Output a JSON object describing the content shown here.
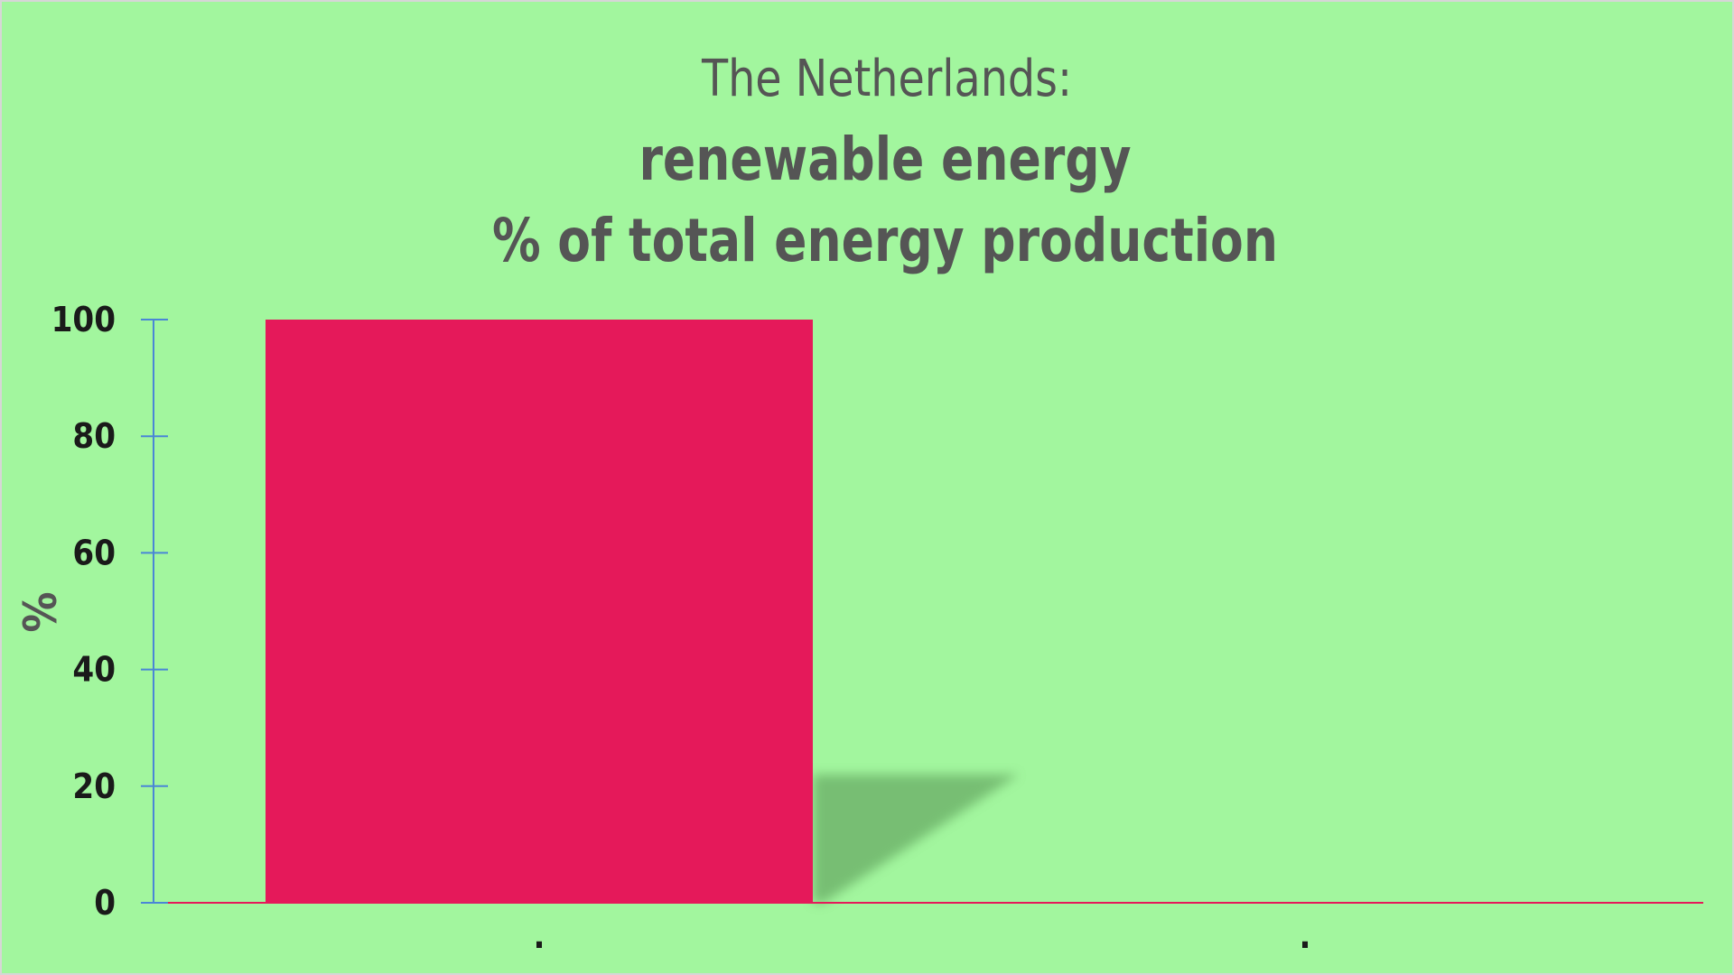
{
  "colors": {
    "background": "#a2f69e",
    "bar": "#e5195a",
    "axis": "#4a86d6",
    "baseline": "#e5195a",
    "shadow": "#6fb56c",
    "title": "#555555",
    "ticks": "#1a1a1a"
  },
  "chart_data": {
    "type": "bar",
    "title": "The Netherlands:",
    "subtitle": [
      "renewable energy",
      "% of total  energy production"
    ],
    "ylabel": "%",
    "xlabel": "",
    "categories": [
      ".",
      "."
    ],
    "values": [
      100,
      0
    ],
    "ylim": [
      0,
      100
    ],
    "yticks": [
      0,
      20,
      40,
      60,
      80,
      100
    ],
    "grid": false,
    "legend": "none"
  }
}
